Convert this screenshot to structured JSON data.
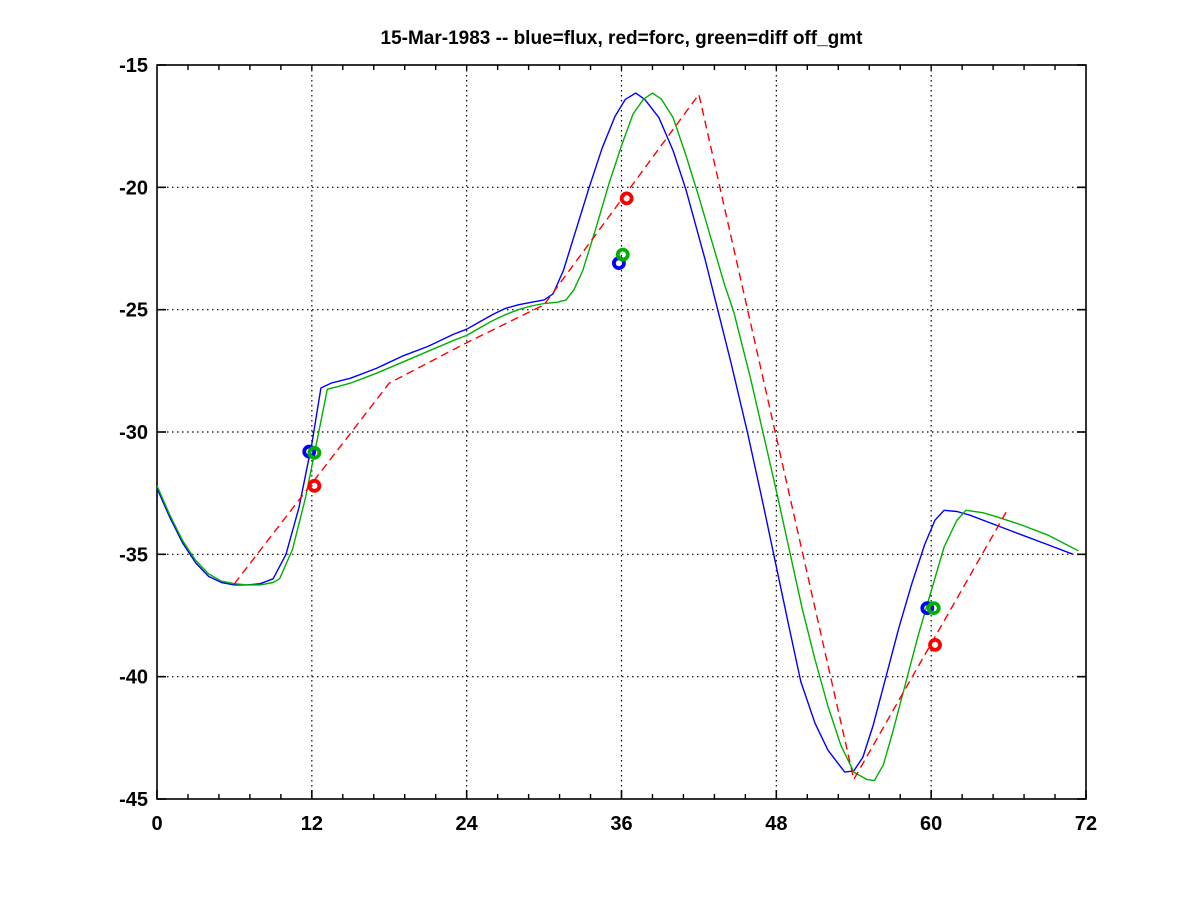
{
  "figure": {
    "background": "#ffffff"
  },
  "chart_data": {
    "type": "line",
    "title": "15-Mar-1983 -- blue=flux, red=forc, green=diff off_gmt",
    "xlabel": "",
    "ylabel": "",
    "xlim": [
      0,
      72
    ],
    "ylim": [
      -45,
      -15
    ],
    "xticks": [
      0,
      12,
      24,
      36,
      48,
      60,
      72
    ],
    "yticks": [
      -45,
      -40,
      -35,
      -30,
      -25,
      -20,
      -15
    ],
    "x_minor_tick_step": 2.4,
    "grid": "dotted",
    "grid_color": "#000000",
    "axis_color": "#000000",
    "legend_position": "in-title",
    "series": [
      {
        "name": "flux",
        "color": "#0000ff",
        "line_style": "solid",
        "x": [
          0,
          1,
          2,
          3,
          4,
          5,
          6,
          7,
          8,
          9,
          10,
          11,
          12,
          12.7,
          13.5,
          15,
          17,
          19,
          21,
          23,
          24,
          25,
          26,
          27,
          28,
          29,
          30,
          30.7,
          31.5,
          32.5,
          33.5,
          34.5,
          35.5,
          36.3,
          37.1,
          37.8,
          38.9,
          40,
          41,
          42.5,
          43.5,
          44.5,
          45.8,
          47,
          48,
          49,
          49.9,
          51,
          52,
          53.3,
          54,
          54.7,
          55.5,
          56.5,
          57.5,
          58.5,
          59.5,
          60.3,
          61,
          62,
          63,
          65,
          67,
          69,
          71
        ],
        "y": [
          -32.3,
          -33.5,
          -34.55,
          -35.35,
          -35.9,
          -36.15,
          -36.25,
          -36.25,
          -36.2,
          -36,
          -35,
          -33.1,
          -30.5,
          -28.2,
          -28,
          -27.8,
          -27.4,
          -26.9,
          -26.5,
          -26,
          -25.8,
          -25.5,
          -25.2,
          -24.95,
          -24.8,
          -24.7,
          -24.6,
          -24.35,
          -23.4,
          -21.7,
          -20,
          -18.4,
          -17.1,
          -16.4,
          -16.15,
          -16.4,
          -17.15,
          -18.5,
          -20.1,
          -23,
          -25.1,
          -27.2,
          -30.1,
          -33,
          -35.5,
          -38,
          -40.2,
          -41.9,
          -43,
          -43.9,
          -43.85,
          -43.3,
          -42,
          -40,
          -38,
          -36.2,
          -34.6,
          -33.6,
          -33.2,
          -33.25,
          -33.4,
          -33.8,
          -34.2,
          -34.6,
          -35
        ]
      },
      {
        "name": "diff",
        "color": "#00b000",
        "line_style": "solid",
        "x": [
          0,
          1,
          2,
          3,
          4,
          5,
          6,
          7,
          8,
          9,
          9.5,
          10.5,
          11.5,
          12.5,
          13.2,
          14,
          15,
          17,
          19,
          21,
          23,
          24,
          25,
          26,
          27,
          28,
          29,
          30,
          31,
          31.7,
          32.3,
          33,
          34,
          35,
          36,
          36.9,
          37.7,
          38.4,
          39.1,
          40,
          41,
          42,
          43,
          44,
          44.7,
          46,
          47,
          48,
          49,
          50,
          51,
          52,
          53,
          54,
          55,
          55.6,
          56.3,
          57,
          58,
          59,
          60,
          61,
          62,
          62.7,
          64,
          65,
          67,
          69,
          71.4
        ],
        "y": [
          -32.2,
          -33.4,
          -34.45,
          -35.25,
          -35.8,
          -36.1,
          -36.2,
          -36.25,
          -36.25,
          -36.15,
          -36,
          -34.8,
          -32.7,
          -30.1,
          -28.25,
          -28.15,
          -28,
          -27.6,
          -27.15,
          -26.7,
          -26.25,
          -26.05,
          -25.75,
          -25.45,
          -25.2,
          -25,
          -24.85,
          -24.75,
          -24.7,
          -24.6,
          -24.2,
          -23.4,
          -21.7,
          -19.9,
          -18.3,
          -17,
          -16.4,
          -16.15,
          -16.4,
          -17.15,
          -18.7,
          -20.4,
          -22.2,
          -24,
          -25.1,
          -27.8,
          -30.1,
          -32.4,
          -34.8,
          -37.2,
          -39.3,
          -41.2,
          -42.8,
          -43.9,
          -44.2,
          -44.25,
          -43.6,
          -42.3,
          -40.3,
          -38.3,
          -36.5,
          -34.7,
          -33.6,
          -33.2,
          -33.3,
          -33.45,
          -33.8,
          -34.2,
          -34.85
        ]
      },
      {
        "name": "forc",
        "color": "#ff0000",
        "line_style": "dashed",
        "x": [
          6,
          12,
          18,
          24,
          30,
          36,
          42,
          48,
          54,
          60,
          66
        ],
        "y": [
          -36.2,
          -32.1,
          -28,
          -26.35,
          -24.8,
          -20.5,
          -16.2,
          -30.2,
          -44.2,
          -38.65,
          -33.1
        ]
      }
    ],
    "markers": [
      {
        "series": "flux",
        "color": "#0000ff",
        "shape": "circle",
        "points": [
          [
            11.8,
            -30.8
          ],
          [
            35.8,
            -23.1
          ],
          [
            59.7,
            -37.2
          ]
        ]
      },
      {
        "series": "diff",
        "color": "#00b000",
        "shape": "circle",
        "points": [
          [
            12.2,
            -30.85
          ],
          [
            36.1,
            -22.75
          ],
          [
            60.2,
            -37.2
          ]
        ]
      },
      {
        "series": "forc",
        "color": "#ff0000",
        "shape": "circle",
        "points": [
          [
            12.2,
            -32.2
          ],
          [
            36.4,
            -20.45
          ],
          [
            60.3,
            -38.7
          ]
        ]
      }
    ]
  }
}
